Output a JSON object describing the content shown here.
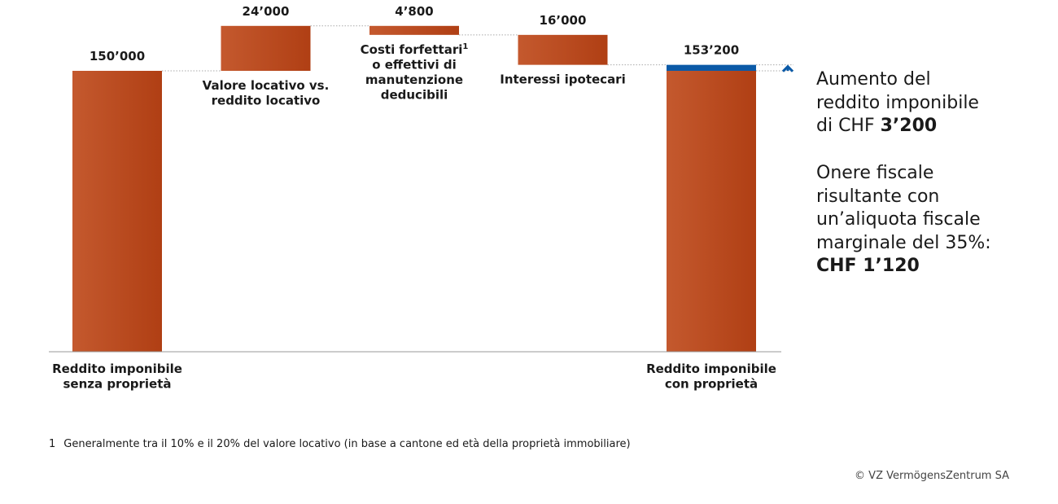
{
  "chart_data": {
    "type": "waterfall",
    "steps": [
      {
        "name": "Reddito imponibile senza proprietà",
        "label_lines": [
          "Reddito imponibile",
          "senza proprietà"
        ],
        "kind": "total",
        "value": 150000,
        "value_label": "150’000"
      },
      {
        "name": "Valore locativo vs. reddito locativo",
        "label_lines": [
          "Valore locativo vs.",
          "reddito locativo"
        ],
        "kind": "increase",
        "value": 24000,
        "value_label": "24’000"
      },
      {
        "name": "Costi forfettari o effettivi di manutenzione deducibili",
        "label_lines": [
          "Costi forfettari",
          "o effettivi di",
          "manutenzione",
          "deducibili"
        ],
        "footnote_mark": "1",
        "kind": "decrease",
        "value": 4800,
        "value_label": "4’800"
      },
      {
        "name": "Interessi ipotecari",
        "label_lines": [
          "Interessi ipotecari"
        ],
        "kind": "decrease",
        "value": 16000,
        "value_label": "16’000"
      },
      {
        "name": "Reddito imponibile con proprietà",
        "label_lines": [
          "Reddito imponibile",
          "con proprietà"
        ],
        "kind": "total",
        "value": 153200,
        "value_label": "153’200",
        "highlight_increase": 3200
      }
    ],
    "ylim": [
      0,
      180000
    ],
    "grid": false,
    "colors": {
      "bar_light": "#c4592e",
      "bar_dark": "#b03f14",
      "increase": "#0b5aa7",
      "connector": "#aaaaaa",
      "axis": "#999999",
      "arrow": "#0b5aa7"
    }
  },
  "side_text": {
    "block1": {
      "line1": "Aumento del",
      "line2": "reddito imponibile",
      "line3_prefix": "di CHF ",
      "line3_bold": "3’200"
    },
    "block2": {
      "line1": "Onere fiscale",
      "line2": "risultante con",
      "line3": "un’aliquota fiscale",
      "line4": "marginale del 35%:",
      "line5_bold": "CHF 1’120"
    }
  },
  "footnote": {
    "number": "1",
    "text": "Generalmente tra il 10% e il 20% del valore locativo (in base a cantone ed età della proprietà immobiliare)"
  },
  "copyright": "© VZ VermögensZentrum SA"
}
